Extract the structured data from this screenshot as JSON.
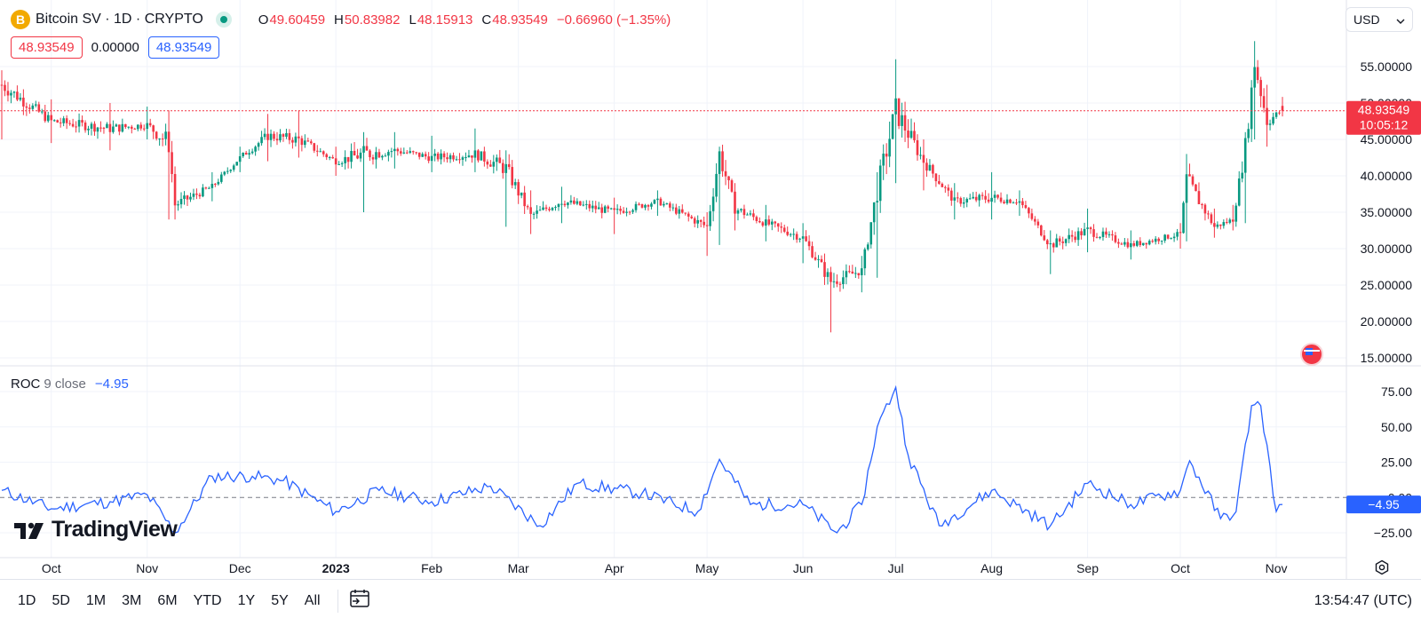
{
  "header": {
    "coin_icon_letter": "B",
    "symbol": "Bitcoin SV · 1D · CRYPTO",
    "live_icon": "market-open-dot",
    "ohlc": {
      "o_label": "O",
      "o": "49.60459",
      "h_label": "H",
      "h": "50.83982",
      "l_label": "L",
      "l": "48.15913",
      "c_label": "C",
      "c": "48.93549",
      "change": "−0.66960 (−1.35%)"
    },
    "price_boxes": [
      "48.93549",
      "0.00000",
      "48.93549"
    ],
    "currency": "USD"
  },
  "price_axis": {
    "labels": [
      "55.00000",
      "50.00000",
      "45.00000",
      "40.00000",
      "35.00000",
      "30.00000",
      "25.00000",
      "20.00000",
      "15.00000"
    ],
    "current_price": "48.93549",
    "countdown": "10:05:12"
  },
  "roc": {
    "name": "ROC",
    "params": "9 close",
    "value": "−4.95",
    "axis_labels": [
      "75.00",
      "50.00",
      "25.00",
      "0.00",
      "−25.00"
    ],
    "current_label": "−4.95"
  },
  "time_axis": [
    "Oct",
    "Nov",
    "Dec",
    "2023",
    "Feb",
    "Mar",
    "Apr",
    "May",
    "Jun",
    "Jul",
    "Aug",
    "Sep",
    "Oct",
    "Nov"
  ],
  "logo_text": "TradingView",
  "bottom_bar": {
    "ranges": [
      "1D",
      "5D",
      "1M",
      "3M",
      "6M",
      "YTD",
      "1Y",
      "5Y",
      "All"
    ],
    "clock": "13:54:47 (UTC)"
  },
  "colors": {
    "up": "#089981",
    "down": "#f23645",
    "roc_line": "#2962ff",
    "grid": "#f0f3fa"
  },
  "chart_data": [
    {
      "type": "candlestick",
      "title": "Bitcoin SV · 1D · CRYPTO",
      "ylim": [
        15,
        58
      ],
      "x_range": [
        "2022-09-15",
        "2023-11-03"
      ],
      "anchors": [
        {
          "date": "2022-09-15",
          "close": 52.5,
          "low": 45.0,
          "high": 54.5
        },
        {
          "date": "2022-10-01",
          "close": 47.5,
          "low": 44.5,
          "high": 50.5
        },
        {
          "date": "2022-10-20",
          "close": 46.5,
          "low": 43.5,
          "high": 50.0
        },
        {
          "date": "2022-11-01",
          "close": 47.0,
          "low": 45.0,
          "high": 49.5
        },
        {
          "date": "2022-11-08",
          "close": 44.5,
          "low": 34.0,
          "high": 49.0
        },
        {
          "date": "2022-11-10",
          "close": 36.0,
          "low": 34.0,
          "high": 41.0
        },
        {
          "date": "2022-11-22",
          "close": 38.5,
          "low": 36.5,
          "high": 40.5
        },
        {
          "date": "2022-12-01",
          "close": 42.5,
          "low": 40.5,
          "high": 44.0
        },
        {
          "date": "2022-12-10",
          "close": 45.5,
          "low": 42.0,
          "high": 48.5
        },
        {
          "date": "2022-12-20",
          "close": 45.0,
          "low": 42.5,
          "high": 49.0
        },
        {
          "date": "2023-01-01",
          "close": 42.0,
          "low": 40.0,
          "high": 44.0
        },
        {
          "date": "2023-01-10",
          "close": 43.0,
          "low": 35.0,
          "high": 46.0
        },
        {
          "date": "2023-01-20",
          "close": 43.5,
          "low": 41.0,
          "high": 46.0
        },
        {
          "date": "2023-02-01",
          "close": 42.5,
          "low": 40.5,
          "high": 45.5
        },
        {
          "date": "2023-02-15",
          "close": 43.0,
          "low": 40.5,
          "high": 46.5
        },
        {
          "date": "2023-02-25",
          "close": 41.0,
          "low": 33.0,
          "high": 43.5
        },
        {
          "date": "2023-03-05",
          "close": 34.5,
          "low": 32.0,
          "high": 38.0
        },
        {
          "date": "2023-03-15",
          "close": 36.5,
          "low": 33.5,
          "high": 38.5
        },
        {
          "date": "2023-04-01",
          "close": 35.0,
          "low": 32.0,
          "high": 37.0
        },
        {
          "date": "2023-04-15",
          "close": 36.5,
          "low": 34.5,
          "high": 38.0
        },
        {
          "date": "2023-05-01",
          "close": 33.0,
          "low": 29.0,
          "high": 35.0
        },
        {
          "date": "2023-05-05",
          "close": 43.0,
          "low": 30.5,
          "high": 44.0
        },
        {
          "date": "2023-05-10",
          "close": 35.5,
          "low": 32.5,
          "high": 39.0
        },
        {
          "date": "2023-05-20",
          "close": 33.5,
          "low": 31.0,
          "high": 36.0
        },
        {
          "date": "2023-06-01",
          "close": 31.5,
          "low": 28.0,
          "high": 33.5
        },
        {
          "date": "2023-06-10",
          "close": 25.5,
          "low": 18.5,
          "high": 27.5
        },
        {
          "date": "2023-06-20",
          "close": 27.0,
          "low": 24.0,
          "high": 29.0
        },
        {
          "date": "2023-06-25",
          "close": 38.0,
          "low": 26.0,
          "high": 40.5
        },
        {
          "date": "2023-07-01",
          "close": 49.0,
          "low": 39.0,
          "high": 56.0
        },
        {
          "date": "2023-07-10",
          "close": 42.0,
          "low": 38.0,
          "high": 45.0
        },
        {
          "date": "2023-07-20",
          "close": 36.5,
          "low": 34.0,
          "high": 39.0
        },
        {
          "date": "2023-08-01",
          "close": 37.0,
          "low": 34.0,
          "high": 40.5
        },
        {
          "date": "2023-08-10",
          "close": 36.5,
          "low": 34.5,
          "high": 38.0
        },
        {
          "date": "2023-08-20",
          "close": 30.5,
          "low": 26.5,
          "high": 32.5
        },
        {
          "date": "2023-09-01",
          "close": 32.5,
          "low": 29.5,
          "high": 35.5
        },
        {
          "date": "2023-09-15",
          "close": 30.5,
          "low": 28.5,
          "high": 32.5
        },
        {
          "date": "2023-10-01",
          "close": 32.0,
          "low": 30.0,
          "high": 33.5
        },
        {
          "date": "2023-10-03",
          "close": 39.5,
          "low": 31.0,
          "high": 43.0
        },
        {
          "date": "2023-10-12",
          "close": 33.0,
          "low": 31.5,
          "high": 35.5
        },
        {
          "date": "2023-10-18",
          "close": 34.0,
          "low": 32.5,
          "high": 36.0
        },
        {
          "date": "2023-10-22",
          "close": 44.0,
          "low": 33.5,
          "high": 46.0
        },
        {
          "date": "2023-10-25",
          "close": 55.5,
          "low": 45.0,
          "high": 58.5
        },
        {
          "date": "2023-10-29",
          "close": 47.5,
          "low": 44.0,
          "high": 52.5
        },
        {
          "date": "2023-11-03",
          "close": 48.93549,
          "low": 48.15913,
          "high": 50.83982
        }
      ]
    },
    {
      "type": "line",
      "title": "ROC 9 close",
      "ylim": [
        -30,
        85
      ],
      "x_range": [
        "2022-09-15",
        "2023-11-03"
      ],
      "series": [
        {
          "name": "ROC",
          "points": [
            {
              "date": "2022-09-15",
              "value": 5
            },
            {
              "date": "2022-10-01",
              "value": -8
            },
            {
              "date": "2022-10-20",
              "value": -3
            },
            {
              "date": "2022-11-01",
              "value": 2
            },
            {
              "date": "2022-11-10",
              "value": -25
            },
            {
              "date": "2022-11-22",
              "value": 15
            },
            {
              "date": "2022-12-05",
              "value": 15
            },
            {
              "date": "2022-12-15",
              "value": 12
            },
            {
              "date": "2023-01-01",
              "value": -10
            },
            {
              "date": "2023-01-15",
              "value": 5
            },
            {
              "date": "2023-02-01",
              "value": -3
            },
            {
              "date": "2023-02-20",
              "value": 8
            },
            {
              "date": "2023-03-08",
              "value": -20
            },
            {
              "date": "2023-03-20",
              "value": 10
            },
            {
              "date": "2023-04-10",
              "value": 3
            },
            {
              "date": "2023-04-28",
              "value": -10
            },
            {
              "date": "2023-05-05",
              "value": 27
            },
            {
              "date": "2023-05-15",
              "value": -5
            },
            {
              "date": "2023-06-01",
              "value": -5
            },
            {
              "date": "2023-06-12",
              "value": -25
            },
            {
              "date": "2023-06-20",
              "value": -5
            },
            {
              "date": "2023-06-25",
              "value": 50
            },
            {
              "date": "2023-07-01",
              "value": 78
            },
            {
              "date": "2023-07-05",
              "value": 30
            },
            {
              "date": "2023-07-15",
              "value": -20
            },
            {
              "date": "2023-08-01",
              "value": 5
            },
            {
              "date": "2023-08-20",
              "value": -20
            },
            {
              "date": "2023-09-01",
              "value": 10
            },
            {
              "date": "2023-09-15",
              "value": -5
            },
            {
              "date": "2023-10-01",
              "value": 5
            },
            {
              "date": "2023-10-04",
              "value": 26
            },
            {
              "date": "2023-10-14",
              "value": -15
            },
            {
              "date": "2023-10-19",
              "value": -10
            },
            {
              "date": "2023-10-24",
              "value": 65
            },
            {
              "date": "2023-10-27",
              "value": 65
            },
            {
              "date": "2023-11-01",
              "value": -10
            },
            {
              "date": "2023-11-03",
              "value": -4.95
            }
          ]
        }
      ]
    }
  ]
}
